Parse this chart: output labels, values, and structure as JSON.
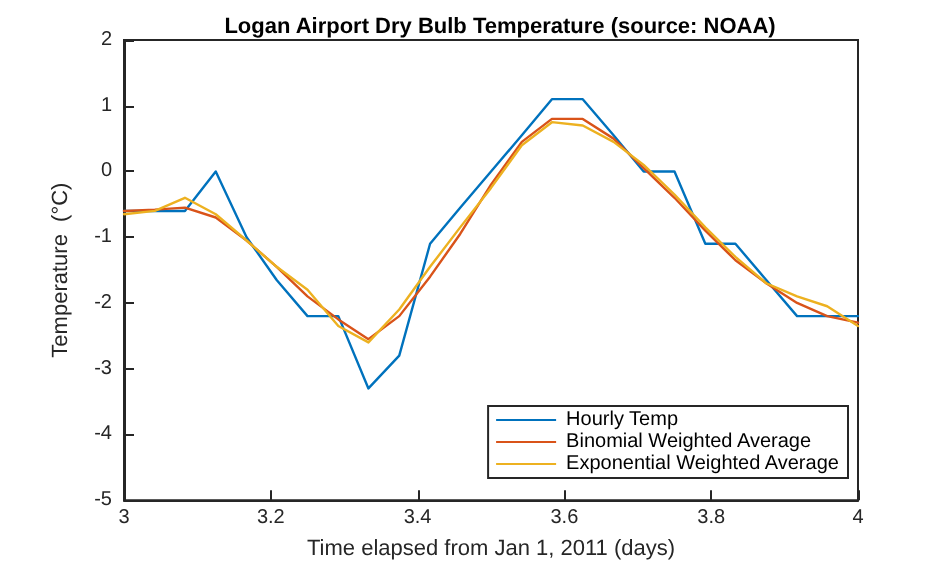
{
  "chart_data": {
    "type": "line",
    "title": "Logan Airport Dry Bulb Temperature (source: NOAA)",
    "xlabel": "Time elapsed from Jan 1, 2011 (days)",
    "ylabel": "Temperature  (°C)",
    "x": [
      3,
      3.042,
      3.083,
      3.125,
      3.167,
      3.208,
      3.25,
      3.292,
      3.333,
      3.375,
      3.417,
      3.458,
      3.5,
      3.542,
      3.583,
      3.625,
      3.667,
      3.708,
      3.75,
      3.792,
      3.833,
      3.875,
      3.917,
      3.958,
      4
    ],
    "series": [
      {
        "name": "Hourly Temp",
        "color": "#0072bd",
        "values": [
          -0.6,
          -0.6,
          -0.6,
          0,
          -1.0,
          -1.65,
          -2.2,
          -2.2,
          -3.3,
          -2.8,
          -1.1,
          -0.55,
          0,
          0.55,
          1.1,
          1.1,
          0.55,
          0,
          0,
          -1.1,
          -1.1,
          -1.65,
          -2.2,
          -2.2,
          -2.2
        ]
      },
      {
        "name": "Binomial Weighted Average",
        "color": "#d95319",
        "values": [
          -0.6,
          -0.58,
          -0.55,
          -0.7,
          -1.05,
          -1.45,
          -1.9,
          -2.25,
          -2.55,
          -2.2,
          -1.6,
          -0.95,
          -0.2,
          0.45,
          0.8,
          0.8,
          0.5,
          0.05,
          -0.4,
          -0.9,
          -1.35,
          -1.7,
          -2.0,
          -2.2,
          -2.3
        ]
      },
      {
        "name": "Exponential Weighted Average",
        "color": "#edb120",
        "values": [
          -0.65,
          -0.6,
          -0.4,
          -0.65,
          -1.05,
          -1.45,
          -1.8,
          -2.35,
          -2.6,
          -2.1,
          -1.45,
          -0.85,
          -0.25,
          0.4,
          0.75,
          0.7,
          0.45,
          0.1,
          -0.35,
          -0.85,
          -1.3,
          -1.7,
          -1.9,
          -2.05,
          -2.35
        ]
      }
    ],
    "xlim": [
      3,
      4
    ],
    "xticks": [
      3,
      3.2,
      3.4,
      3.6,
      3.8,
      4
    ],
    "ylim": [
      -5,
      2
    ],
    "yticks": [
      -5,
      -4,
      -3,
      -2,
      -1,
      0,
      1,
      2
    ],
    "grid": false,
    "legend": "bottom right",
    "marker": "none",
    "line_style": "solid"
  }
}
